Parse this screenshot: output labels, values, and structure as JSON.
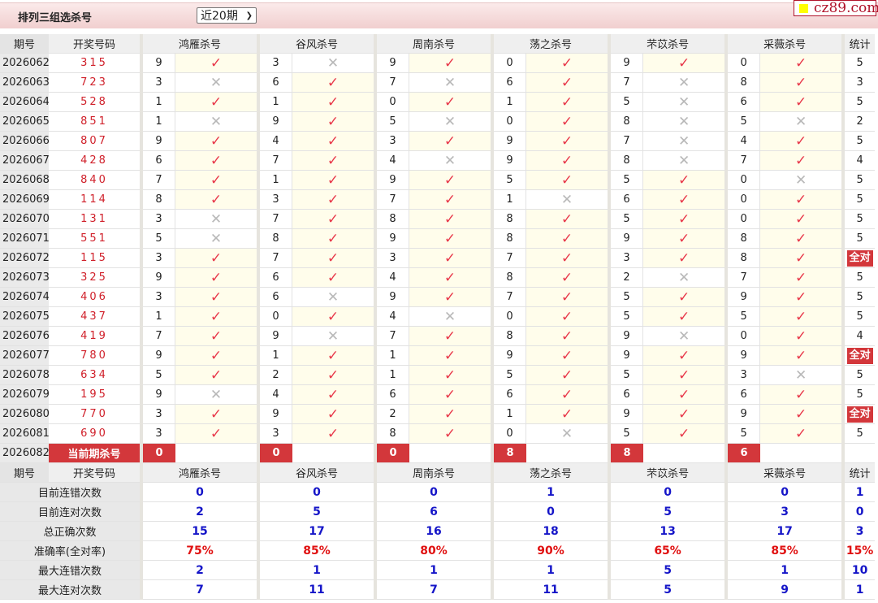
{
  "header": {
    "title": "排列三组选杀号",
    "period_select": "近20期",
    "logo": "cz89.com"
  },
  "columns": {
    "period": "期号",
    "draw": "开奖号码",
    "predictors": [
      "鸿雁杀号",
      "谷风杀号",
      "周南杀号",
      "荡之杀号",
      "芣苡杀号",
      "采薇杀号"
    ],
    "stat": "统计"
  },
  "colors": {
    "check": "#e8384a",
    "cross": "#b8b8b8",
    "badge": "#d3373b",
    "blue": "#1515c8"
  },
  "rows": [
    {
      "period": "2026062",
      "draw": "315",
      "kills": [
        "9",
        "3",
        "9",
        "0",
        "9",
        "0"
      ],
      "hits": [
        1,
        0,
        1,
        1,
        1,
        1
      ],
      "stat": "5"
    },
    {
      "period": "2026063",
      "draw": "723",
      "kills": [
        "3",
        "6",
        "7",
        "6",
        "7",
        "8"
      ],
      "hits": [
        0,
        1,
        0,
        1,
        0,
        1
      ],
      "stat": "3"
    },
    {
      "period": "2026064",
      "draw": "528",
      "kills": [
        "1",
        "1",
        "0",
        "1",
        "5",
        "6"
      ],
      "hits": [
        1,
        1,
        1,
        1,
        0,
        1
      ],
      "stat": "5"
    },
    {
      "period": "2026065",
      "draw": "851",
      "kills": [
        "1",
        "9",
        "5",
        "0",
        "8",
        "5"
      ],
      "hits": [
        0,
        1,
        0,
        1,
        0,
        0
      ],
      "stat": "2"
    },
    {
      "period": "2026066",
      "draw": "807",
      "kills": [
        "9",
        "4",
        "3",
        "9",
        "7",
        "4"
      ],
      "hits": [
        1,
        1,
        1,
        1,
        0,
        1
      ],
      "stat": "5"
    },
    {
      "period": "2026067",
      "draw": "428",
      "kills": [
        "6",
        "7",
        "4",
        "9",
        "8",
        "7"
      ],
      "hits": [
        1,
        1,
        0,
        1,
        0,
        1
      ],
      "stat": "4"
    },
    {
      "period": "2026068",
      "draw": "840",
      "kills": [
        "7",
        "1",
        "9",
        "5",
        "5",
        "0"
      ],
      "hits": [
        1,
        1,
        1,
        1,
        1,
        0
      ],
      "stat": "5"
    },
    {
      "period": "2026069",
      "draw": "114",
      "kills": [
        "8",
        "3",
        "7",
        "1",
        "6",
        "0"
      ],
      "hits": [
        1,
        1,
        1,
        0,
        1,
        1
      ],
      "stat": "5"
    },
    {
      "period": "2026070",
      "draw": "131",
      "kills": [
        "3",
        "7",
        "8",
        "8",
        "5",
        "0"
      ],
      "hits": [
        0,
        1,
        1,
        1,
        1,
        1
      ],
      "stat": "5"
    },
    {
      "period": "2026071",
      "draw": "551",
      "kills": [
        "5",
        "8",
        "9",
        "8",
        "9",
        "8"
      ],
      "hits": [
        0,
        1,
        1,
        1,
        1,
        1
      ],
      "stat": "5"
    },
    {
      "period": "2026072",
      "draw": "115",
      "kills": [
        "3",
        "7",
        "3",
        "7",
        "3",
        "8"
      ],
      "hits": [
        1,
        1,
        1,
        1,
        1,
        1
      ],
      "stat": "全对"
    },
    {
      "period": "2026073",
      "draw": "325",
      "kills": [
        "9",
        "6",
        "4",
        "8",
        "2",
        "7"
      ],
      "hits": [
        1,
        1,
        1,
        1,
        0,
        1
      ],
      "stat": "5"
    },
    {
      "period": "2026074",
      "draw": "406",
      "kills": [
        "3",
        "6",
        "9",
        "7",
        "5",
        "9"
      ],
      "hits": [
        1,
        0,
        1,
        1,
        1,
        1
      ],
      "stat": "5"
    },
    {
      "period": "2026075",
      "draw": "437",
      "kills": [
        "1",
        "0",
        "4",
        "0",
        "5",
        "5"
      ],
      "hits": [
        1,
        1,
        0,
        1,
        1,
        1
      ],
      "stat": "5"
    },
    {
      "period": "2026076",
      "draw": "419",
      "kills": [
        "7",
        "9",
        "7",
        "8",
        "9",
        "0"
      ],
      "hits": [
        1,
        0,
        1,
        1,
        0,
        1
      ],
      "stat": "4"
    },
    {
      "period": "2026077",
      "draw": "780",
      "kills": [
        "9",
        "1",
        "1",
        "9",
        "9",
        "9"
      ],
      "hits": [
        1,
        1,
        1,
        1,
        1,
        1
      ],
      "stat": "全对"
    },
    {
      "period": "2026078",
      "draw": "634",
      "kills": [
        "5",
        "2",
        "1",
        "5",
        "5",
        "3"
      ],
      "hits": [
        1,
        1,
        1,
        1,
        1,
        0
      ],
      "stat": "5"
    },
    {
      "period": "2026079",
      "draw": "195",
      "kills": [
        "9",
        "4",
        "6",
        "6",
        "6",
        "6"
      ],
      "hits": [
        0,
        1,
        1,
        1,
        1,
        1
      ],
      "stat": "5"
    },
    {
      "period": "2026080",
      "draw": "770",
      "kills": [
        "3",
        "9",
        "2",
        "1",
        "9",
        "9"
      ],
      "hits": [
        1,
        1,
        1,
        1,
        1,
        1
      ],
      "stat": "全对"
    },
    {
      "period": "2026081",
      "draw": "690",
      "kills": [
        "3",
        "3",
        "8",
        "0",
        "5",
        "5"
      ],
      "hits": [
        1,
        1,
        1,
        0,
        1,
        1
      ],
      "stat": "5"
    }
  ],
  "current": {
    "period": "2026082",
    "label": "当前期杀号",
    "kills": [
      "0",
      "0",
      "0",
      "8",
      "8",
      "6"
    ]
  },
  "stats": [
    {
      "label": "目前连错次数",
      "values": [
        "0",
        "0",
        "0",
        "1",
        "0",
        "0",
        "1"
      ],
      "style": "blue"
    },
    {
      "label": "目前连对次数",
      "values": [
        "2",
        "5",
        "6",
        "0",
        "5",
        "3",
        "0"
      ],
      "style": "blue"
    },
    {
      "label": "总正确次数",
      "values": [
        "15",
        "17",
        "16",
        "18",
        "13",
        "17",
        "3"
      ],
      "style": "blue"
    },
    {
      "label": "准确率(全对率)",
      "values": [
        "75%",
        "85%",
        "80%",
        "90%",
        "65%",
        "85%",
        "15%"
      ],
      "style": "red"
    },
    {
      "label": "最大连错次数",
      "values": [
        "2",
        "1",
        "1",
        "1",
        "5",
        "1",
        "10"
      ],
      "style": "blue"
    },
    {
      "label": "最大连对次数",
      "values": [
        "7",
        "11",
        "7",
        "11",
        "5",
        "9",
        "1"
      ],
      "style": "blue"
    }
  ],
  "marks": {
    "hit": "✓",
    "miss": "✕"
  }
}
